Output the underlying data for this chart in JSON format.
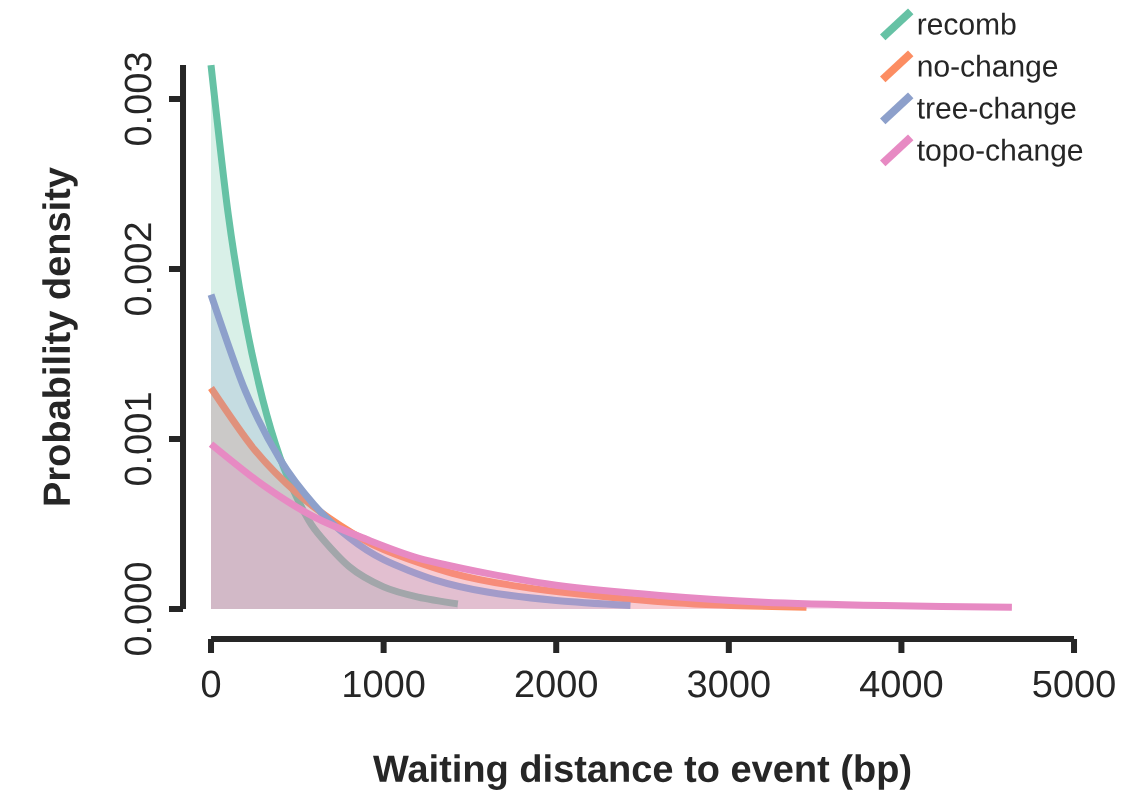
{
  "chart_data": {
    "type": "area",
    "xlabel": "Waiting distance to event (bp)",
    "ylabel": "Probability density",
    "xlim": [
      0,
      5000
    ],
    "ylim": [
      0,
      0.0032
    ],
    "xticks": [
      0,
      1000,
      2000,
      3000,
      4000,
      5000
    ],
    "yticks": [
      {
        "value": 0,
        "label": "0.000"
      },
      {
        "value": 0.001,
        "label": "0.001"
      },
      {
        "value": 0.002,
        "label": "0.002"
      },
      {
        "value": 0.003,
        "label": "0.003"
      }
    ],
    "legend": "top right",
    "marker": "none",
    "line_style": "solid",
    "series": [
      {
        "name": "recomb",
        "color": "#66c2a5",
        "x": [
          0,
          100,
          200,
          300,
          400,
          500,
          600,
          800,
          1000,
          1200,
          1430
        ],
        "values": [
          0.0032,
          0.00232,
          0.00169,
          0.00123,
          0.00089,
          0.00065,
          0.00047,
          0.00025,
          0.00013,
          7e-05,
          3e-05
        ]
      },
      {
        "name": "no-change",
        "color": "#fc8d62",
        "x": [
          0,
          250,
          500,
          750,
          1000,
          1400,
          1800,
          2300,
          2800,
          3450
        ],
        "values": [
          0.0013,
          0.00094,
          0.00068,
          0.00049,
          0.00035,
          0.00021,
          0.00013,
          7e-05,
          3e-05,
          1e-05
        ]
      },
      {
        "name": "tree-change",
        "color": "#8da0cb",
        "x": [
          0,
          200,
          400,
          600,
          800,
          1000,
          1300,
          1600,
          2000,
          2430
        ],
        "values": [
          0.00185,
          0.00128,
          0.00088,
          0.00061,
          0.00042,
          0.00029,
          0.00017,
          0.0001,
          5e-05,
          2e-05
        ]
      },
      {
        "name": "topo-change",
        "color": "#e78ac3",
        "x": [
          0,
          300,
          600,
          900,
          1200,
          1600,
          2000,
          2600,
          3200,
          3900,
          4640
        ],
        "values": [
          0.00097,
          0.00073,
          0.00054,
          0.00041,
          0.0003,
          0.00021,
          0.00014,
          8e-05,
          4e-05,
          2e-05,
          1e-05
        ]
      }
    ]
  }
}
